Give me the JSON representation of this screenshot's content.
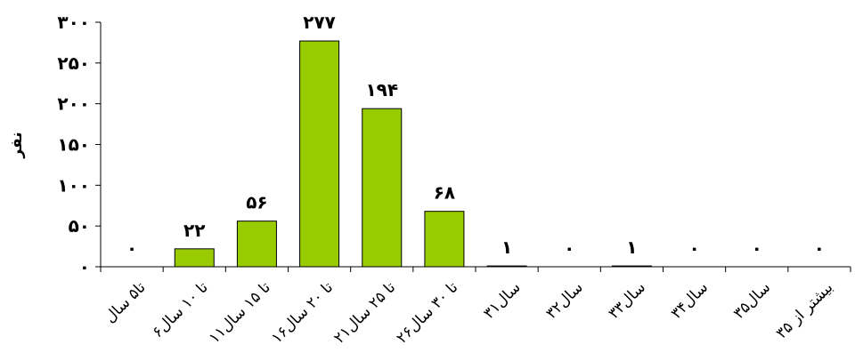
{
  "chart_data": {
    "type": "bar",
    "title": "",
    "xlabel": "",
    "ylabel": "نفر",
    "ylim": [
      0,
      300
    ],
    "yticks": [
      0,
      50,
      100,
      150,
      200,
      250,
      300
    ],
    "ytick_labels": [
      "۰",
      "۵۰",
      "۱۰۰",
      "۱۵۰",
      "۲۰۰",
      "۲۵۰",
      "۳۰۰"
    ],
    "grid": false,
    "bar_color": "#99cc00",
    "categories": [
      "تا۵ سال",
      "۶تا ۱۰ سال",
      "۱۱تا ۱۵ سال",
      "۱۶تا ۲۰ سال",
      "۲۱تا ۲۵ سال",
      "۲۶تا ۳۰ سال",
      "۳۱سال",
      "۳۲سال",
      "۳۳سال",
      "۳۴سال",
      "۳۵سال",
      "بیشتر از ۳۵"
    ],
    "values": [
      0,
      22,
      56,
      277,
      194,
      68,
      1,
      0,
      1,
      0,
      0,
      0
    ],
    "value_labels": [
      "۰",
      "۲۲",
      "۵۶",
      "۲۷۷",
      "۱۹۴",
      "۶۸",
      "۱",
      "۰",
      "۱",
      "۰",
      "۰",
      "۰"
    ]
  }
}
